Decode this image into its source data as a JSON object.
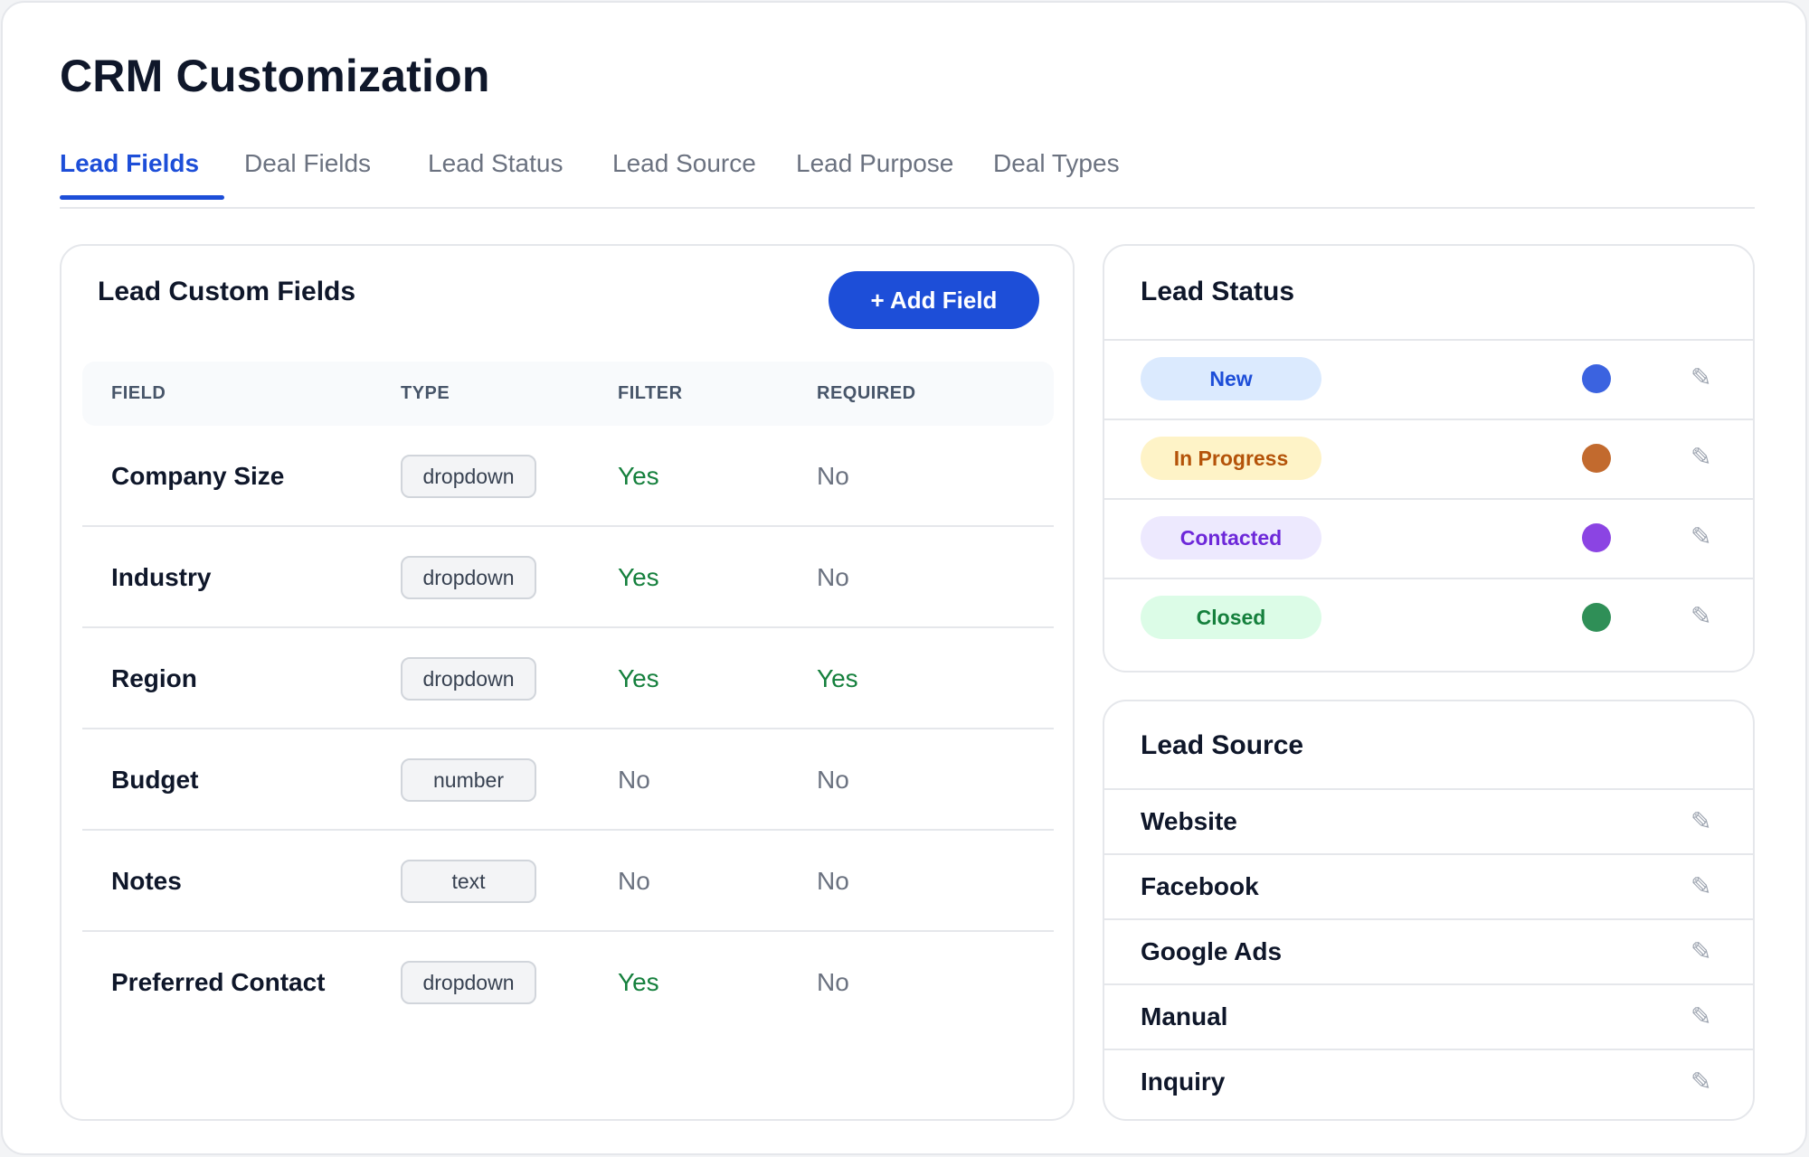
{
  "page": {
    "title": "CRM Customization"
  },
  "tabs": [
    {
      "label": "Lead Fields",
      "active": true
    },
    {
      "label": "Deal Fields"
    },
    {
      "label": "Lead Status"
    },
    {
      "label": "Lead Source"
    },
    {
      "label": "Lead Purpose"
    },
    {
      "label": "Deal Types"
    }
  ],
  "lead_fields": {
    "title": "Lead Custom Fields",
    "add_button": "+ Add Field",
    "columns": [
      "FIELD",
      "TYPE",
      "FILTER",
      "REQUIRED"
    ],
    "rows": [
      {
        "field": "Company Size",
        "type": "dropdown",
        "filter": "Yes",
        "required": "No"
      },
      {
        "field": "Industry",
        "type": "dropdown",
        "filter": "Yes",
        "required": "No"
      },
      {
        "field": "Region",
        "type": "dropdown",
        "filter": "Yes",
        "required": "Yes"
      },
      {
        "field": "Budget",
        "type": "number",
        "filter": "No",
        "required": "No"
      },
      {
        "field": "Notes",
        "type": "text",
        "filter": "No",
        "required": "No"
      },
      {
        "field": "Preferred Contact",
        "type": "dropdown",
        "filter": "Yes",
        "required": "No"
      }
    ]
  },
  "lead_status": {
    "title": "Lead Status",
    "items": [
      {
        "label": "New",
        "pill_bg": "#dbeafe",
        "pill_fg": "#1d4ed8",
        "color": "#3b63e0"
      },
      {
        "label": "In Progress",
        "pill_bg": "#fef3c7",
        "pill_fg": "#b45309",
        "color": "#c26a2e"
      },
      {
        "label": "Contacted",
        "pill_bg": "#ede9fe",
        "pill_fg": "#6d28d9",
        "color": "#8b44e3"
      },
      {
        "label": "Closed",
        "pill_bg": "#dcfce7",
        "pill_fg": "#15803d",
        "color": "#2f8f57"
      }
    ]
  },
  "lead_source": {
    "title": "Lead Source",
    "items": [
      "Website",
      "Facebook",
      "Google Ads",
      "Manual",
      "Inquiry"
    ]
  },
  "icons": {
    "edit": "pencil-icon",
    "edit_glyph": "✎"
  },
  "colors": {
    "accent": "#1d4ed8",
    "yes": "#15803d",
    "no": "#6b7280"
  }
}
